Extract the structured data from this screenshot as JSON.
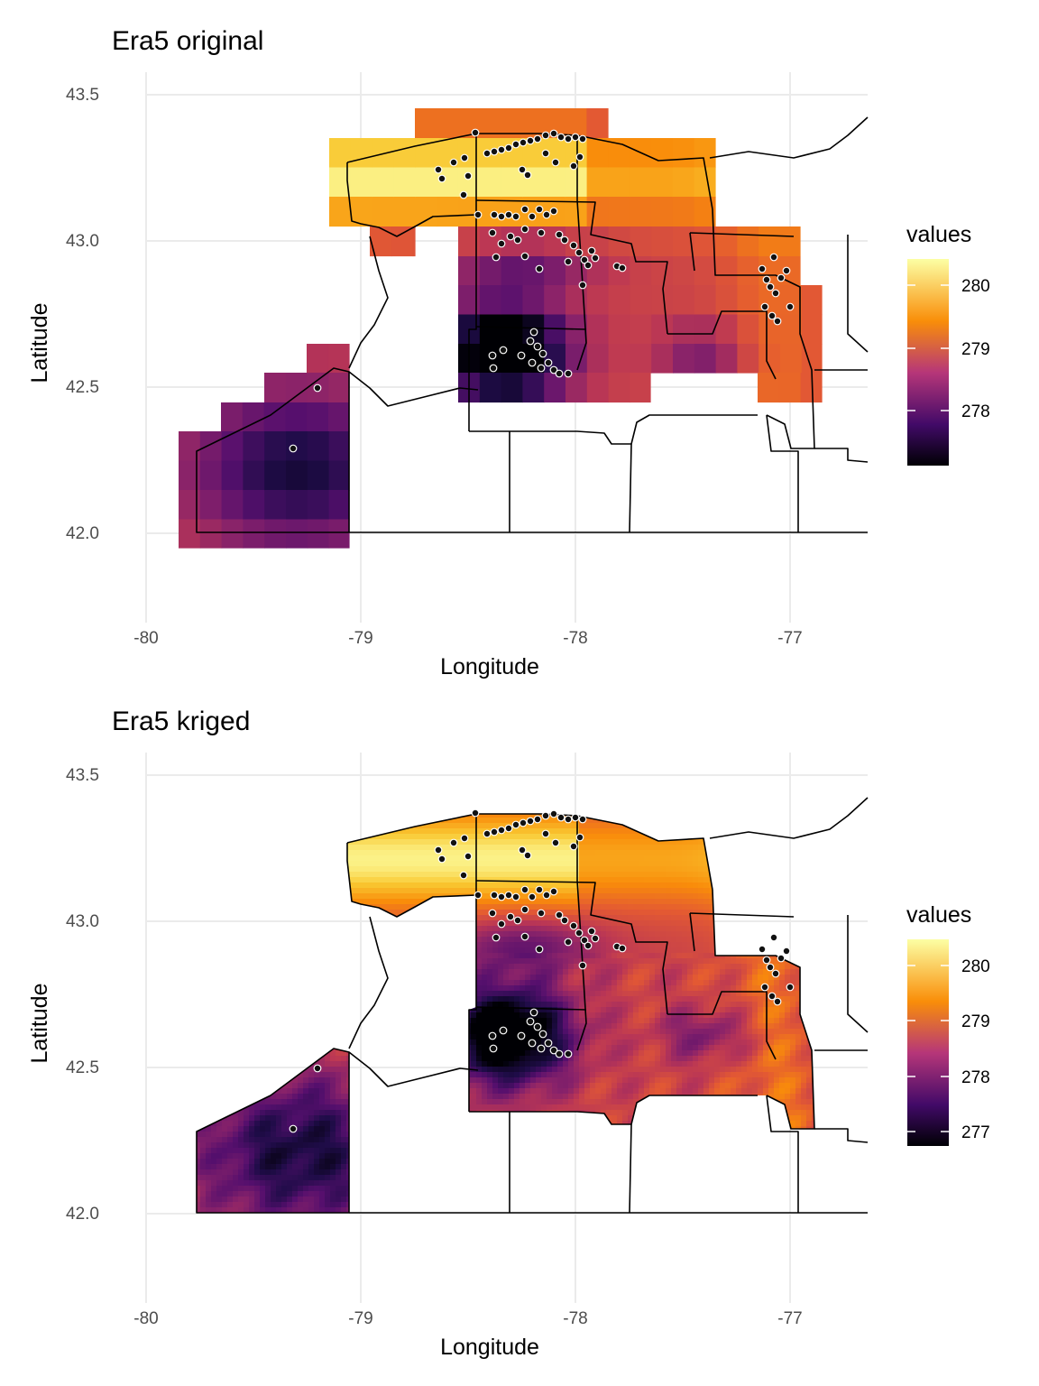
{
  "colors": {
    "palette": "inferno",
    "low": "#000004",
    "mid_low": "#420a68",
    "mid": "#b63679",
    "mid_high": "#f98e09",
    "high": "#fcffa4",
    "station_fill": "#111111",
    "station_stroke": "#ffffff",
    "border": "#000000",
    "grid": "#ebebeb"
  },
  "panels": [
    {
      "id": "original",
      "title": "Era5 original",
      "xlabel": "Longitude",
      "ylabel": "Latitude",
      "x_ticks": [
        "-80",
        "-79",
        "-78",
        "-77"
      ],
      "y_ticks": [
        "43.5",
        "43.0",
        "42.5",
        "42.0"
      ],
      "legend_title": "values",
      "legend_ticks": [
        "280",
        "279",
        "278"
      ],
      "raster": "coarse"
    },
    {
      "id": "kriged",
      "title": "Era5 kriged",
      "xlabel": "Longitude",
      "ylabel": "Latitude",
      "x_ticks": [
        "-80",
        "-79",
        "-78",
        "-77"
      ],
      "y_ticks": [
        "43.5",
        "43.0",
        "42.5",
        "42.0"
      ],
      "legend_title": "values",
      "legend_ticks": [
        "280",
        "279",
        "278",
        "277"
      ],
      "raster": "fine"
    }
  ],
  "chart_data": [
    {
      "type": "heatmap",
      "title": "Era5 original",
      "xlabel": "Longitude",
      "ylabel": "Latitude",
      "xlim": [
        -80.2,
        -76.6
      ],
      "ylim": [
        41.7,
        43.6
      ],
      "x_ticks": [
        -80,
        -79,
        -78,
        -77
      ],
      "y_ticks": [
        43.5,
        43.0,
        42.5,
        42.0
      ],
      "legend": {
        "title": "values",
        "range": [
          277.1,
          280.4
        ],
        "ticks": [
          280,
          279,
          278
        ],
        "placement": "right"
      },
      "grid": true
    },
    {
      "type": "heatmap",
      "title": "Era5 kriged",
      "xlabel": "Longitude",
      "ylabel": "Latitude",
      "xlim": [
        -80.2,
        -76.6
      ],
      "ylim": [
        41.7,
        43.6
      ],
      "x_ticks": [
        -80,
        -79,
        -78,
        -77
      ],
      "y_ticks": [
        43.5,
        43.0,
        42.5,
        42.0
      ],
      "legend": {
        "title": "values",
        "range": [
          276.7,
          280.5
        ],
        "ticks": [
          280,
          279,
          278,
          277
        ],
        "placement": "right"
      },
      "grid": true
    }
  ]
}
